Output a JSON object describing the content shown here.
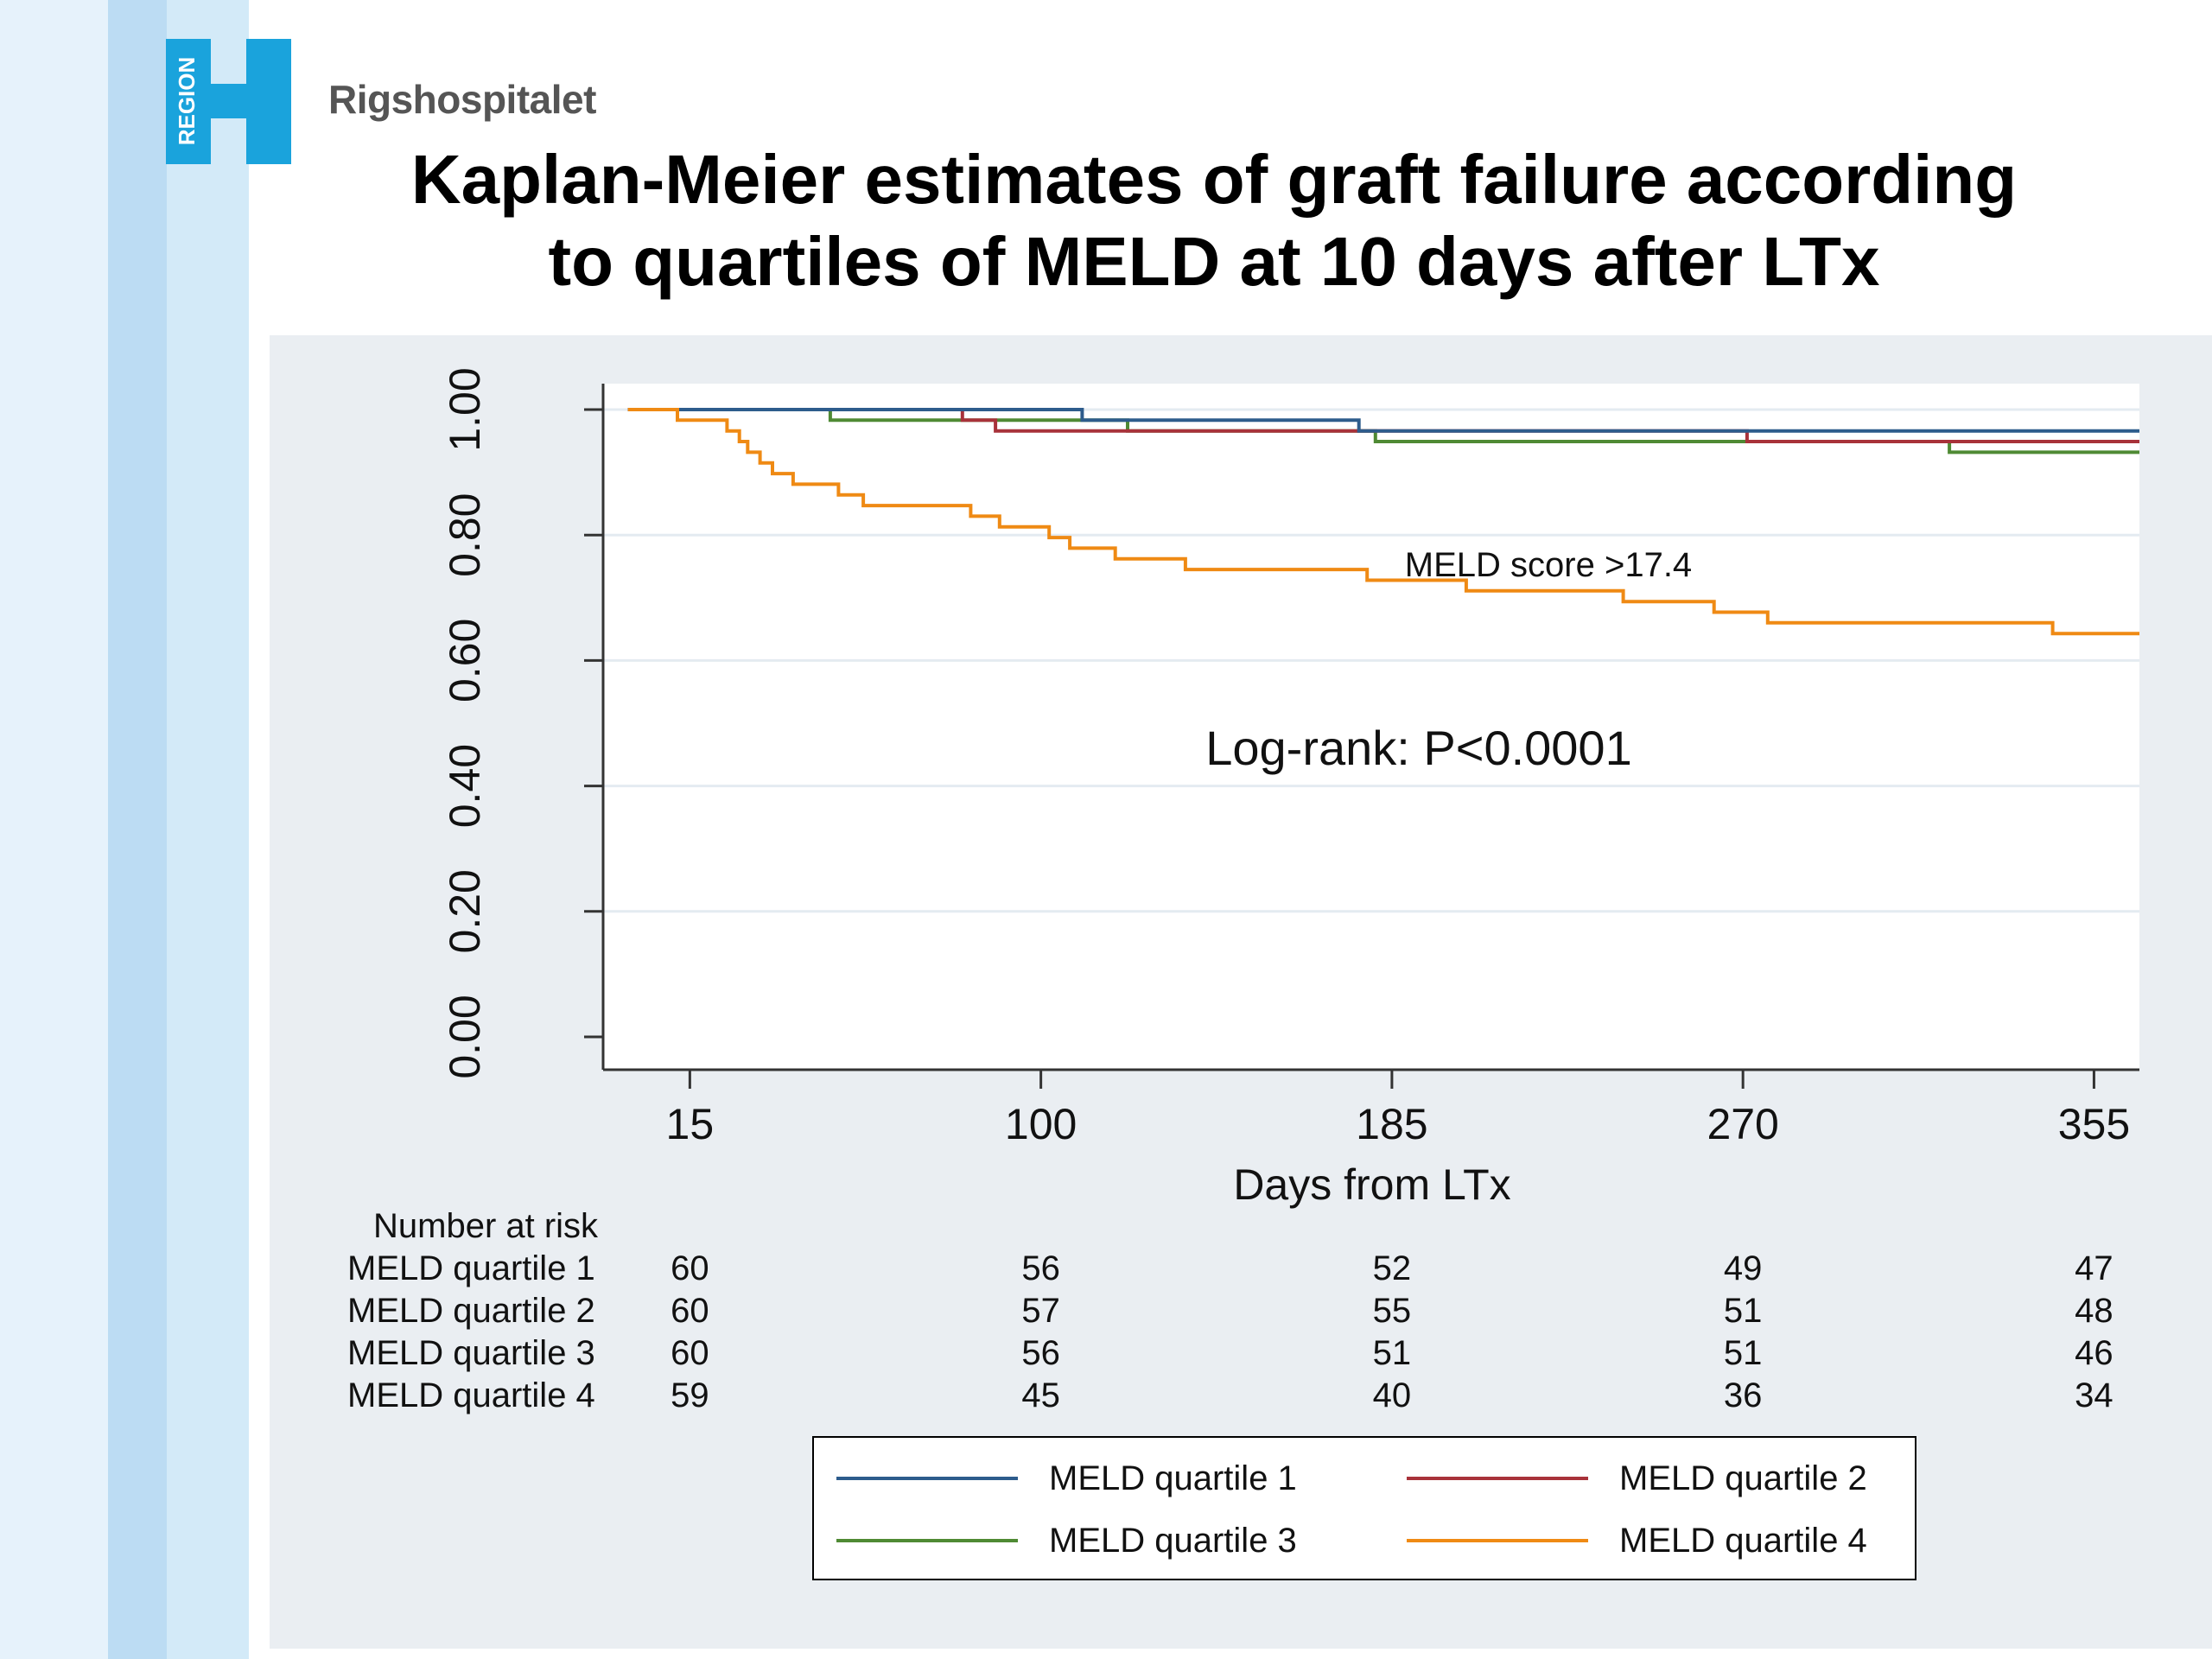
{
  "header": {
    "logo_text": "REGION",
    "logo_letter": "H",
    "brand": "Rigshospitalet",
    "title_line1": "Kaplan-Meier estimates of graft failure according",
    "title_line2": "to quartiles of MELD at 10 days after LTx"
  },
  "colors": {
    "q1": "#2d5c8c",
    "q2": "#a8323a",
    "q3": "#4f8a34",
    "q4": "#ef8a14",
    "logo": "#1aa3dc"
  },
  "chart_data": {
    "type": "line",
    "step": true,
    "xlabel": "Days from LTx",
    "ylabel": "",
    "x_ticks": [
      15,
      100,
      185,
      270,
      355
    ],
    "y_ticks": [
      "0.00",
      "0.20",
      "0.40",
      "0.60",
      "0.80",
      "1.00"
    ],
    "xlim": [
      -6,
      366
    ],
    "ylim": [
      0,
      1.04
    ],
    "grid": true,
    "legend_position": "bottom",
    "annotations": [
      "MELD score >17.4",
      "Log-rank: P<0.0001"
    ],
    "series": [
      {
        "name": "MELD quartile 1",
        "color": "#2d5c8c",
        "points": [
          [
            0,
            1.0
          ],
          [
            110,
            1.0
          ],
          [
            110,
            0.983
          ],
          [
            177,
            0.983
          ],
          [
            177,
            0.966
          ],
          [
            366,
            0.966
          ]
        ]
      },
      {
        "name": "MELD quartile 2",
        "color": "#a8323a",
        "points": [
          [
            0,
            1.0
          ],
          [
            81,
            1.0
          ],
          [
            81,
            0.983
          ],
          [
            89,
            0.983
          ],
          [
            89,
            0.966
          ],
          [
            271,
            0.966
          ],
          [
            271,
            0.949
          ],
          [
            366,
            0.949
          ]
        ]
      },
      {
        "name": "MELD quartile 3",
        "color": "#4f8a34",
        "points": [
          [
            0,
            1.0
          ],
          [
            49,
            1.0
          ],
          [
            49,
            0.983
          ],
          [
            121,
            0.983
          ],
          [
            121,
            0.966
          ],
          [
            181,
            0.966
          ],
          [
            181,
            0.949
          ],
          [
            320,
            0.949
          ],
          [
            320,
            0.932
          ],
          [
            366,
            0.932
          ]
        ]
      },
      {
        "name": "MELD quartile 4",
        "color": "#ef8a14",
        "points": [
          [
            0,
            1.0
          ],
          [
            12,
            1.0
          ],
          [
            12,
            0.983
          ],
          [
            24,
            0.983
          ],
          [
            24,
            0.966
          ],
          [
            27,
            0.966
          ],
          [
            27,
            0.949
          ],
          [
            29,
            0.949
          ],
          [
            29,
            0.932
          ],
          [
            32,
            0.932
          ],
          [
            32,
            0.915
          ],
          [
            35,
            0.915
          ],
          [
            35,
            0.898
          ],
          [
            40,
            0.898
          ],
          [
            40,
            0.881
          ],
          [
            51,
            0.881
          ],
          [
            51,
            0.864
          ],
          [
            57,
            0.864
          ],
          [
            57,
            0.847
          ],
          [
            83,
            0.847
          ],
          [
            83,
            0.83
          ],
          [
            90,
            0.83
          ],
          [
            90,
            0.813
          ],
          [
            102,
            0.813
          ],
          [
            102,
            0.796
          ],
          [
            107,
            0.796
          ],
          [
            107,
            0.779
          ],
          [
            118,
            0.779
          ],
          [
            118,
            0.762
          ],
          [
            135,
            0.762
          ],
          [
            135,
            0.745
          ],
          [
            179,
            0.745
          ],
          [
            179,
            0.728
          ],
          [
            203,
            0.728
          ],
          [
            203,
            0.711
          ],
          [
            241,
            0.711
          ],
          [
            241,
            0.694
          ],
          [
            263,
            0.694
          ],
          [
            263,
            0.677
          ],
          [
            276,
            0.677
          ],
          [
            276,
            0.66
          ],
          [
            345,
            0.66
          ],
          [
            345,
            0.643
          ],
          [
            366,
            0.643
          ]
        ]
      }
    ],
    "risk_table": {
      "title": "Number at risk",
      "rows": [
        {
          "label": "MELD quartile 1",
          "values": [
            "60",
            "56",
            "52",
            "49",
            "47"
          ]
        },
        {
          "label": "MELD quartile 2",
          "values": [
            "60",
            "57",
            "55",
            "51",
            "48"
          ]
        },
        {
          "label": "MELD quartile 3",
          "values": [
            "60",
            "56",
            "51",
            "51",
            "46"
          ]
        },
        {
          "label": "MELD quartile 4",
          "values": [
            "59",
            "45",
            "40",
            "36",
            "34"
          ]
        }
      ]
    }
  }
}
